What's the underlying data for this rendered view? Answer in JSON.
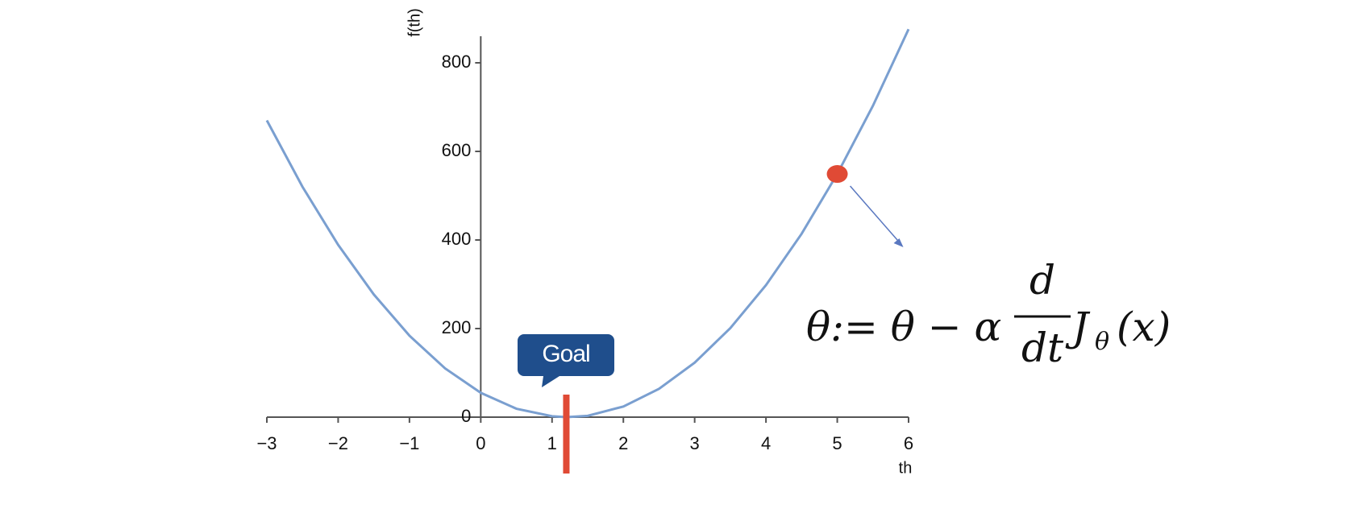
{
  "chart_data": {
    "type": "line",
    "x_label": "th",
    "y_label": "f(th)",
    "x": [
      -3,
      -2.5,
      -2,
      -1.5,
      -1,
      -0.5,
      0,
      0.5,
      1,
      1.2,
      1.5,
      2,
      2.5,
      3,
      3.5,
      4,
      4.5,
      5,
      5.5,
      6
    ],
    "series": [
      {
        "color": "#7a9fd0",
        "values": [
          670,
          520,
          389,
          277,
          184,
          110,
          55,
          19,
          2,
          0,
          3,
          24,
          64,
          123,
          201,
          298,
          414,
          549,
          703,
          876
        ]
      }
    ],
    "xlim": [
      -3,
      6
    ],
    "xticks": [
      {
        "value": -3,
        "label": "−3"
      },
      {
        "value": -2,
        "label": "−2"
      },
      {
        "value": -1,
        "label": "−1"
      },
      0,
      1,
      2,
      3,
      4,
      5,
      6
    ],
    "ylim": [
      0,
      860
    ],
    "yticks": [
      0,
      200,
      400,
      600,
      800
    ],
    "goal": {
      "label": "Goal",
      "x": 1.2,
      "color": "#e04a35"
    },
    "point": {
      "x": 5,
      "y": 549,
      "color": "#e04a35"
    },
    "formula": {
      "lhs": "θ:= θ − α",
      "numerator": "d",
      "denominator": "dt",
      "function": "J",
      "subscript": "θ",
      "argument": "(x)"
    }
  }
}
